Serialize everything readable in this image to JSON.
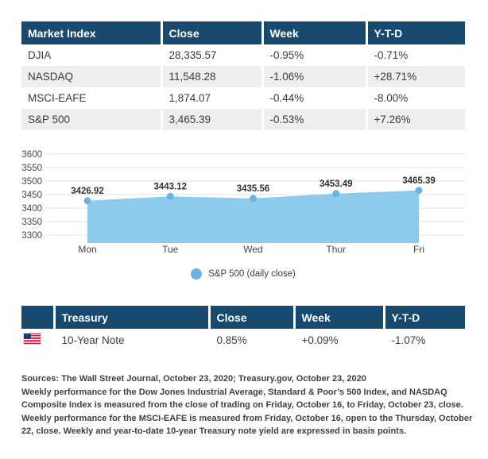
{
  "colors": {
    "header_navy": "#174a6e",
    "row_stripe": "#eeeeee",
    "area_fill": "#8ccbee",
    "marker_blue": "#6cb3e2",
    "gridline": "#e2e2e2"
  },
  "market_table": {
    "headers": [
      "Market Index",
      "Close",
      "Week",
      "Y-T-D"
    ],
    "rows": [
      {
        "index": "DJIA",
        "close": "28,335.57",
        "week": "-0.95%",
        "ytd": "-0.71%"
      },
      {
        "index": "NASDAQ",
        "close": "11,548.28",
        "week": "-1.06%",
        "ytd": "+28.71%"
      },
      {
        "index": "MSCI-EAFE",
        "close": "1,874.07",
        "week": "-0.44%",
        "ytd": "-8.00%"
      },
      {
        "index": "S&P 500",
        "close": "3,465.39",
        "week": "-0.53%",
        "ytd": "+7.26%"
      }
    ]
  },
  "chart_data": {
    "type": "area",
    "title": "",
    "xlabel": "",
    "ylabel": "",
    "x": [
      "Mon",
      "Tue",
      "Wed",
      "Thur",
      "Fri"
    ],
    "values": [
      3426.92,
      3443.12,
      3435.56,
      3453.49,
      3465.39
    ],
    "point_labels": [
      "3426.92",
      "3443.12",
      "3435.56",
      "3453.49",
      "3465.39"
    ],
    "yticks": [
      3600,
      3550,
      3500,
      3450,
      3400,
      3350,
      3300
    ],
    "ylim": [
      3270,
      3625
    ],
    "grid": true,
    "legend": "S&P 500 (daily close)",
    "legend_position": "bottom",
    "fill_color": "#8ccbee",
    "marker_color": "#6cb3e2",
    "grid_color": "#e2e2e2"
  },
  "treasury_table": {
    "headers": [
      "",
      "Treasury",
      "Close",
      "Week",
      "Y-T-D"
    ],
    "rows": [
      {
        "flag": "us-flag",
        "name": "10-Year Note",
        "close": "0.85%",
        "week": "+0.09%",
        "ytd": "-1.07%"
      }
    ]
  },
  "footer": {
    "lines": [
      "Sources: The Wall Street Journal, October 23, 2020; Treasury.gov, October 23, 2020",
      "Weekly performance for the Dow Jones Industrial Average, Standard & Poor’s 500 Index, and NASDAQ",
      "Composite Index is measured from the close of trading on Friday, October 16, to Friday, October 23, close.",
      "Weekly performance for the MSCI-EAFE is measured from Friday, October 16, open to the Thursday, October",
      "22, close. Weekly and year-to-date 10-year Treasury note yield are expressed in basis points."
    ]
  }
}
